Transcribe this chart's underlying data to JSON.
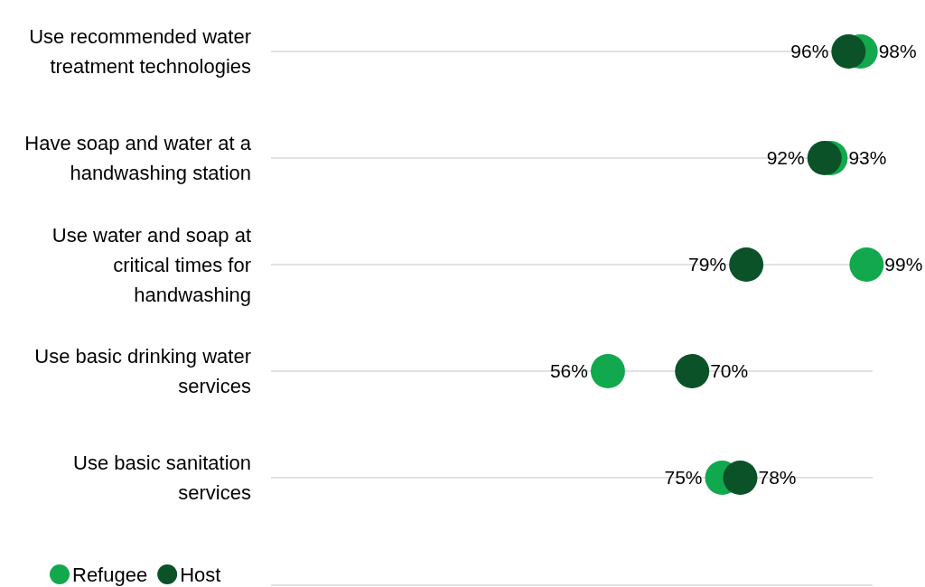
{
  "chart_data": {
    "type": "scatter",
    "orientation": "horizontal",
    "categories": [
      "Use recommended water treatment technologies",
      "Have soap and water at a handwashing station",
      "Use water and soap at critical times for handwashing",
      "Use basic drinking water services",
      "Use basic sanitation services"
    ],
    "series": [
      {
        "name": "Refugee",
        "color": "#12a84e",
        "values": [
          98,
          93,
          99,
          56,
          75
        ],
        "value_labels": [
          "98%",
          "93%",
          "99%",
          "56%",
          "75%"
        ]
      },
      {
        "name": "Host",
        "color": "#0b5228",
        "values": [
          96,
          92,
          79,
          70,
          78
        ],
        "value_labels": [
          "96%",
          "92%",
          "79%",
          "70%",
          "78%"
        ]
      }
    ],
    "xlim": [
      0,
      100
    ],
    "legend": "bottom left",
    "grid": "y",
    "tick_labels": "y",
    "marker": "circle"
  }
}
